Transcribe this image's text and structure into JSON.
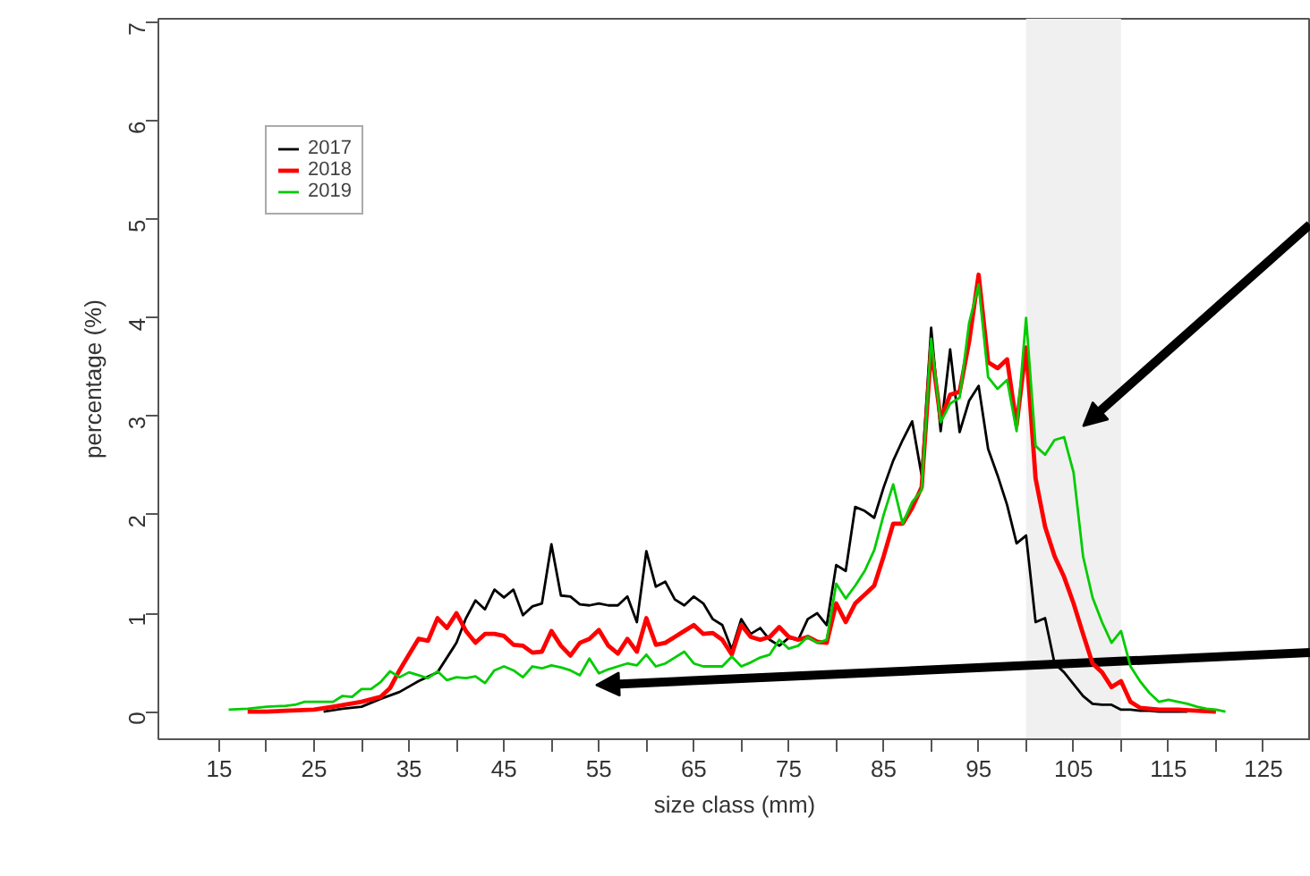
{
  "chart_data": {
    "type": "line",
    "xlabel": "size class (mm)",
    "ylabel": "percentage (%)",
    "xlim": [
      8.6,
      130
    ],
    "ylim": [
      -0.28,
      7.04
    ],
    "xticks": [
      15,
      {
        "value": 20,
        "label": null
      },
      25,
      {
        "value": 30,
        "label": null
      },
      35,
      {
        "value": 40,
        "label": null
      },
      45,
      {
        "value": 50,
        "label": null
      },
      55,
      {
        "value": 60,
        "label": null
      },
      65,
      {
        "value": 70,
        "label": null
      },
      75,
      {
        "value": 80,
        "label": null
      },
      85,
      {
        "value": 90,
        "label": null
      },
      95,
      {
        "value": 100,
        "label": null
      },
      105,
      {
        "value": 110,
        "label": null
      },
      115,
      {
        "value": 120,
        "label": null
      },
      125
    ],
    "yticks": [
      0,
      1,
      2,
      3,
      4,
      5,
      6,
      7
    ],
    "grid": false,
    "legend": "top left",
    "marker": "none",
    "line_style": "solid",
    "bands": [
      {
        "axis": "x",
        "from": 100,
        "to": 110,
        "color": "#f0f0f0"
      }
    ],
    "series": [
      {
        "name": "2017",
        "color": "#000000",
        "x": [
          26,
          28,
          30,
          32,
          34,
          36,
          38,
          40,
          41,
          42,
          43,
          44,
          45,
          46,
          47,
          48,
          49,
          50,
          51,
          52,
          53,
          54,
          55,
          56,
          57,
          58,
          59,
          60,
          61,
          62,
          63,
          64,
          65,
          66,
          67,
          68,
          69,
          70,
          71,
          72,
          73,
          74,
          75,
          76,
          77,
          78,
          79,
          80,
          81,
          82,
          83,
          84,
          85,
          86,
          87,
          88,
          89,
          90,
          91,
          92,
          93,
          94,
          95,
          96,
          97,
          98,
          99,
          100,
          101,
          102,
          103,
          104,
          105,
          106,
          107,
          108,
          109,
          110,
          111,
          112,
          113,
          114,
          115,
          116,
          117
        ],
        "values": [
          0,
          0.03,
          0.05,
          0.13,
          0.2,
          0.31,
          0.4,
          0.7,
          0.95,
          1.13,
          1.04,
          1.24,
          1.16,
          1.24,
          0.98,
          1.07,
          1.1,
          1.7,
          1.18,
          1.17,
          1.09,
          1.08,
          1.1,
          1.08,
          1.08,
          1.17,
          0.91,
          1.63,
          1.27,
          1.32,
          1.14,
          1.08,
          1.17,
          1.1,
          0.94,
          0.88,
          0.63,
          0.94,
          0.79,
          0.85,
          0.73,
          0.67,
          0.75,
          0.73,
          0.94,
          1.0,
          0.88,
          1.49,
          1.43,
          2.08,
          2.04,
          1.97,
          2.28,
          2.55,
          2.76,
          2.95,
          2.4,
          3.9,
          2.85,
          3.68,
          2.84,
          3.16,
          3.31,
          2.67,
          2.4,
          2.1,
          1.71,
          1.79,
          0.91,
          0.95,
          0.49,
          0.4,
          0.28,
          0.16,
          0.08,
          0.07,
          0.07,
          0.02,
          0.02,
          0.01,
          0.01,
          0,
          0,
          0,
          0
        ]
      },
      {
        "name": "2018",
        "color": "#ff0000",
        "x": [
          18,
          20,
          22,
          25,
          27,
          30,
          32,
          33,
          34,
          35,
          36,
          37,
          38,
          39,
          40,
          41,
          42,
          43,
          44,
          45,
          46,
          47,
          48,
          49,
          50,
          51,
          52,
          53,
          54,
          55,
          56,
          57,
          58,
          59,
          60,
          61,
          62,
          63,
          64,
          65,
          66,
          67,
          68,
          69,
          70,
          71,
          72,
          73,
          74,
          75,
          76,
          77,
          78,
          79,
          80,
          81,
          82,
          83,
          84,
          85,
          86,
          87,
          88,
          89,
          90,
          91,
          92,
          93,
          94,
          95,
          96,
          97,
          98,
          99,
          100,
          101,
          102,
          103,
          104,
          105,
          106,
          107,
          108,
          109,
          110,
          111,
          112,
          114,
          116,
          118,
          120
        ],
        "values": [
          0,
          0,
          0.01,
          0.02,
          0.05,
          0.1,
          0.15,
          0.24,
          0.42,
          0.58,
          0.74,
          0.72,
          0.95,
          0.85,
          1.0,
          0.82,
          0.7,
          0.79,
          0.79,
          0.77,
          0.68,
          0.67,
          0.6,
          0.61,
          0.82,
          0.67,
          0.57,
          0.7,
          0.74,
          0.83,
          0.67,
          0.59,
          0.74,
          0.61,
          0.95,
          0.68,
          0.7,
          0.76,
          0.82,
          0.88,
          0.79,
          0.8,
          0.73,
          0.58,
          0.88,
          0.76,
          0.73,
          0.76,
          0.86,
          0.76,
          0.73,
          0.76,
          0.71,
          0.7,
          1.1,
          0.91,
          1.1,
          1.19,
          1.28,
          1.58,
          1.91,
          1.91,
          2.07,
          2.28,
          3.7,
          2.97,
          3.22,
          3.25,
          3.76,
          4.44,
          3.55,
          3.49,
          3.58,
          2.91,
          3.7,
          2.37,
          1.88,
          1.58,
          1.37,
          1.1,
          0.79,
          0.49,
          0.4,
          0.25,
          0.31,
          0.1,
          0.04,
          0.02,
          0.02,
          0.01,
          0
        ]
      },
      {
        "name": "2019",
        "color": "#00cc00",
        "x": [
          16,
          18,
          20,
          22,
          23,
          24,
          26,
          27,
          28,
          29,
          30,
          31,
          32,
          33,
          34,
          35,
          36,
          37,
          38,
          39,
          40,
          41,
          42,
          43,
          44,
          45,
          46,
          47,
          48,
          49,
          50,
          51,
          52,
          53,
          54,
          55,
          56,
          57,
          58,
          59,
          60,
          61,
          62,
          63,
          64,
          65,
          66,
          67,
          68,
          69,
          70,
          71,
          72,
          73,
          74,
          75,
          76,
          77,
          78,
          79,
          80,
          81,
          82,
          83,
          84,
          85,
          86,
          87,
          88,
          89,
          90,
          91,
          92,
          93,
          94,
          95,
          96,
          97,
          98,
          99,
          100,
          101,
          102,
          103,
          104,
          105,
          106,
          107,
          108,
          109,
          110,
          111,
          112,
          113,
          114,
          115,
          116,
          117,
          118,
          119,
          120,
          121
        ],
        "values": [
          0.02,
          0.03,
          0.05,
          0.06,
          0.07,
          0.1,
          0.1,
          0.1,
          0.16,
          0.15,
          0.23,
          0.23,
          0.3,
          0.41,
          0.35,
          0.4,
          0.37,
          0.34,
          0.41,
          0.32,
          0.35,
          0.34,
          0.36,
          0.29,
          0.42,
          0.46,
          0.42,
          0.35,
          0.46,
          0.44,
          0.47,
          0.45,
          0.42,
          0.37,
          0.54,
          0.39,
          0.43,
          0.46,
          0.49,
          0.47,
          0.58,
          0.46,
          0.49,
          0.55,
          0.61,
          0.49,
          0.46,
          0.46,
          0.46,
          0.56,
          0.46,
          0.5,
          0.55,
          0.58,
          0.73,
          0.64,
          0.67,
          0.76,
          0.7,
          0.73,
          1.3,
          1.15,
          1.28,
          1.43,
          1.64,
          2.0,
          2.31,
          1.91,
          2.13,
          2.25,
          3.79,
          2.94,
          3.13,
          3.19,
          3.95,
          4.34,
          3.4,
          3.28,
          3.37,
          2.85,
          4.0,
          2.7,
          2.61,
          2.76,
          2.79,
          2.43,
          1.58,
          1.16,
          0.91,
          0.7,
          0.82,
          0.46,
          0.31,
          0.19,
          0.1,
          0.12,
          0.1,
          0.08,
          0.05,
          0.03,
          0.02,
          0
        ]
      }
    ]
  }
}
